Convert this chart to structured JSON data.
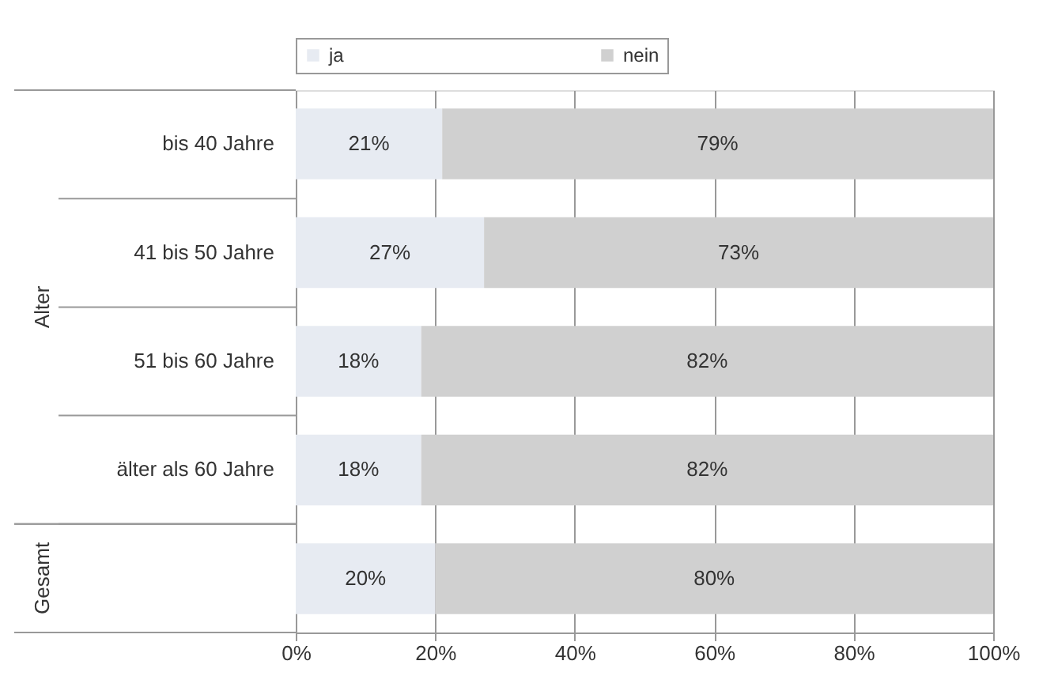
{
  "chart_data": {
    "type": "bar",
    "orientation": "horizontal",
    "stacked": true,
    "categories": [
      "bis 40 Jahre",
      "41 bis 50 Jahre",
      "51 bis 60 Jahre",
      "älter als 60 Jahre",
      null
    ],
    "series": [
      {
        "name": "ja",
        "color": "#e7ebf2",
        "values": [
          21,
          27,
          18,
          18,
          20
        ],
        "value_labels": [
          "21%",
          "27%",
          "18%",
          "18%",
          "20%"
        ]
      },
      {
        "name": "nein",
        "color": "#d0d0d0",
        "values": [
          79,
          73,
          82,
          82,
          80
        ],
        "value_labels": [
          "79%",
          "73%",
          "82%",
          "82%",
          "80%"
        ]
      }
    ],
    "xlim": [
      0,
      100
    ],
    "xticks": [
      {
        "value": 0,
        "label": "0%"
      },
      {
        "value": 20,
        "label": "20%"
      },
      {
        "value": 40,
        "label": "40%"
      },
      {
        "value": 60,
        "label": "60%"
      },
      {
        "value": 80,
        "label": "80%"
      },
      {
        "value": 100,
        "label": "100%"
      }
    ],
    "grid": "x",
    "legend": "top",
    "annotations": [
      "Alter",
      "Gesamt"
    ]
  }
}
